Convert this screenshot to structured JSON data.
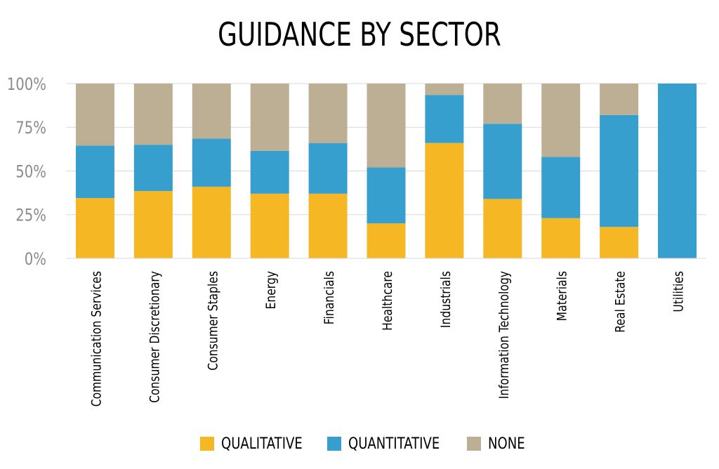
{
  "chart_data": {
    "type": "bar",
    "stacked": true,
    "title": "GUIDANCE BY SECTOR",
    "xlabel": "",
    "ylabel": "",
    "ylim": [
      0,
      100
    ],
    "yticks": [
      "0%",
      "25%",
      "50%",
      "75%",
      "100%"
    ],
    "ytick_values": [
      0,
      25,
      50,
      75,
      100
    ],
    "grid": true,
    "legend_position": "bottom",
    "categories": [
      "Communication Services",
      "Consumer Discretionary",
      "Consumer Staples",
      "Energy",
      "Financials",
      "Healthcare",
      "Industrials",
      "Information Technology",
      "Materials",
      "Real Estate",
      "Utilities"
    ],
    "series": [
      {
        "name": "QUALITATIVE",
        "color": "#F5B824",
        "values": [
          34.5,
          38.5,
          41,
          37,
          37,
          20,
          66,
          34,
          23,
          18,
          0
        ]
      },
      {
        "name": "QUANTITATIVE",
        "color": "#379FCE",
        "values": [
          30,
          26.5,
          27.5,
          24.5,
          29,
          32,
          27.5,
          43,
          35,
          64,
          100
        ]
      },
      {
        "name": "NONE",
        "color": "#BDAF93",
        "values": [
          35.5,
          35,
          31.5,
          38.5,
          34,
          48,
          6.5,
          23,
          42,
          18,
          0
        ]
      }
    ]
  }
}
